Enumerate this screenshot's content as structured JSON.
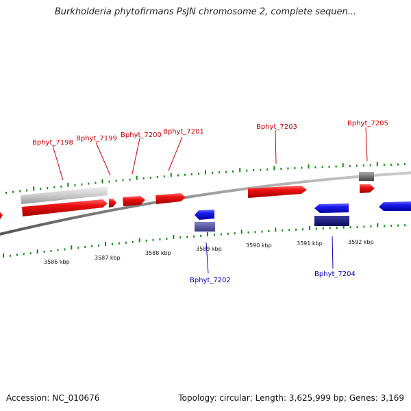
{
  "title": "Burkholderia phytofirmans PsJN chromosome 2, complete sequen...",
  "accession": "Accession: NC_010676",
  "summary": "Topology: circular; Length: 3,625,999 bp; Genes: 3,169",
  "colors": {
    "forward_gene": "#ee1111",
    "reverse_gene": "#1111ee",
    "forward_label": "#cc0000",
    "reverse_label": "#0000bb",
    "tick": "#118811",
    "backbone": "#888888"
  },
  "kbp_labels": [
    "3586 kbp",
    "3587 kbp",
    "3588 kbp",
    "3589 kbp",
    "3590 kbp",
    "3591 kbp",
    "3592 kbp"
  ],
  "gene_labels": {
    "g7198": "Bphyt_7198",
    "g7199": "Bphyt_7199",
    "g7200": "Bphyt_7200",
    "g7201": "Bphyt_7201",
    "g7202": "Bphyt_7202",
    "g7203": "Bphyt_7203",
    "g7204": "Bphyt_7204",
    "g7205": "Bphyt_7205"
  }
}
